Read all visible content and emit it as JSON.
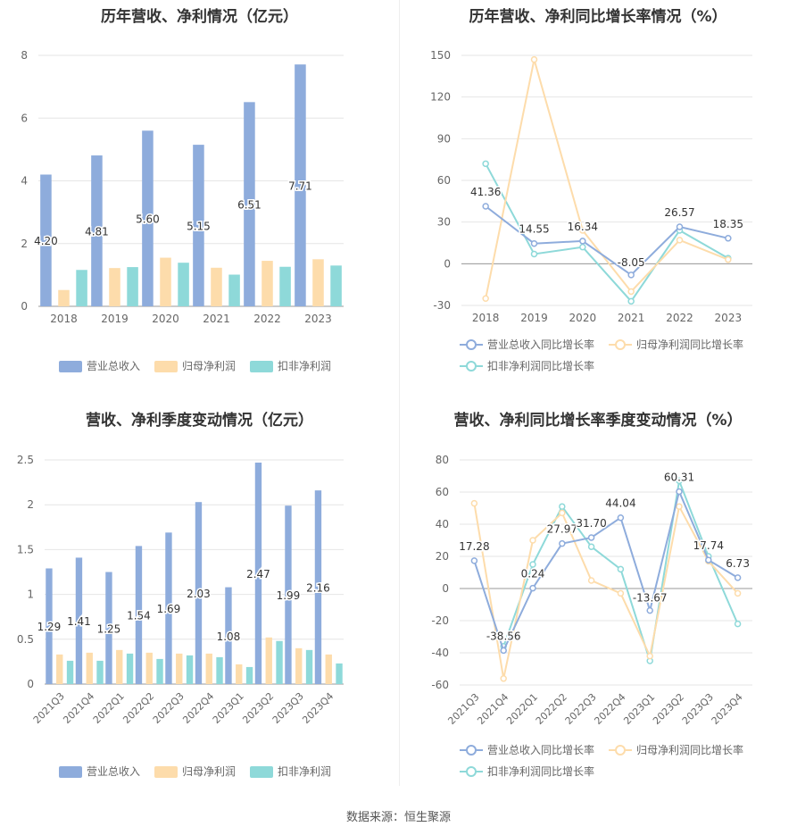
{
  "source": "数据来源：恒生聚源",
  "colors": {
    "revenue": "#8eacdc",
    "netprofit": "#fddcab",
    "deducted": "#8ed9d9",
    "grid": "#e6e6e6",
    "axis": "#999999",
    "text": "#666666"
  },
  "chart_data": [
    {
      "id": "annual-bar",
      "type": "bar",
      "title": "历年营收、净利情况（亿元）",
      "categories": [
        "2018",
        "2019",
        "2020",
        "2021",
        "2022",
        "2023"
      ],
      "ylim": [
        0,
        8
      ],
      "yticks": [
        0,
        2,
        4,
        6,
        8
      ],
      "series": [
        {
          "name": "营业总收入",
          "values": [
            4.2,
            4.81,
            5.6,
            5.15,
            6.51,
            7.71
          ],
          "labels": [
            "4.20",
            "4.81",
            "5.60",
            "5.15",
            "6.51",
            "7.71"
          ]
        },
        {
          "name": "归母净利润",
          "values": [
            0.52,
            1.22,
            1.55,
            1.23,
            1.45,
            1.5
          ]
        },
        {
          "name": "扣非净利润",
          "values": [
            1.16,
            1.25,
            1.39,
            1.01,
            1.26,
            1.3
          ]
        }
      ],
      "legend": "bottom"
    },
    {
      "id": "annual-line",
      "type": "line",
      "title": "历年营收、净利同比增长率情况（%）",
      "categories": [
        "2018",
        "2019",
        "2020",
        "2021",
        "2022",
        "2023"
      ],
      "ylim": [
        -30,
        150
      ],
      "yticks": [
        -30,
        0,
        30,
        60,
        90,
        120,
        150
      ],
      "series": [
        {
          "name": "营业总收入同比增长率",
          "values": [
            41.36,
            14.55,
            16.34,
            -8.05,
            26.57,
            18.35
          ],
          "labels": [
            "41.36",
            "14.55",
            "16.34",
            "-8.05",
            "26.57",
            "18.35"
          ]
        },
        {
          "name": "归母净利润同比增长率",
          "values": [
            -25,
            147,
            24,
            -20,
            17,
            3
          ]
        },
        {
          "name": "扣非净利润同比增长率",
          "values": [
            72,
            7,
            12,
            -27,
            24,
            4
          ]
        }
      ],
      "legend": "bottom"
    },
    {
      "id": "quarter-bar",
      "type": "bar",
      "title": "营收、净利季度变动情况（亿元）",
      "categories": [
        "2021Q3",
        "2021Q4",
        "2022Q1",
        "2022Q2",
        "2022Q3",
        "2022Q4",
        "2023Q1",
        "2023Q2",
        "2023Q3",
        "2023Q4"
      ],
      "ylim": [
        0,
        2.5
      ],
      "yticks": [
        0,
        0.5,
        1,
        1.5,
        2,
        2.5
      ],
      "yticklabels": [
        "0",
        "0.5",
        "1",
        "1.5",
        "2",
        "2.5"
      ],
      "series": [
        {
          "name": "营业总收入",
          "values": [
            1.29,
            1.41,
            1.25,
            1.54,
            1.69,
            2.03,
            1.08,
            2.47,
            1.99,
            2.16
          ],
          "labels": [
            "1.29",
            "1.41",
            "1.25",
            "1.54",
            "1.69",
            "2.03",
            "1.08",
            "2.47",
            "1.99",
            "2.16"
          ]
        },
        {
          "name": "归母净利润",
          "values": [
            0.33,
            0.35,
            0.38,
            0.35,
            0.34,
            0.34,
            0.22,
            0.52,
            0.4,
            0.33
          ]
        },
        {
          "name": "扣非净利润",
          "values": [
            0.26,
            0.26,
            0.34,
            0.28,
            0.32,
            0.3,
            0.19,
            0.48,
            0.38,
            0.23
          ]
        }
      ],
      "legend": "bottom"
    },
    {
      "id": "quarter-line",
      "type": "line",
      "title": "营收、净利同比增长率季度变动情况（%）",
      "categories": [
        "2021Q3",
        "2021Q4",
        "2022Q1",
        "2022Q2",
        "2022Q3",
        "2022Q4",
        "2023Q1",
        "2023Q2",
        "2023Q3",
        "2023Q4"
      ],
      "ylim": [
        -60,
        80
      ],
      "yticks": [
        -60,
        -40,
        -20,
        0,
        20,
        40,
        60,
        80
      ],
      "series": [
        {
          "name": "营业总收入同比增长率",
          "values": [
            17.28,
            -38.56,
            0.24,
            27.97,
            31.7,
            44.04,
            -13.67,
            60.31,
            17.74,
            6.73
          ],
          "labels": [
            "17.28",
            "-38.56",
            "0.24",
            "27.97",
            "31.70",
            "44.04",
            "-13.67",
            "60.31",
            "17.74",
            "6.73"
          ]
        },
        {
          "name": "归母净利润同比增长率",
          "values": [
            53,
            -56,
            30,
            47,
            5,
            -3,
            -42,
            51,
            17,
            -3
          ]
        },
        {
          "name": "扣非净利润同比增长率",
          "values": [
            null,
            -36,
            15,
            51,
            26,
            12,
            -45,
            67,
            20,
            -22
          ]
        }
      ],
      "legend": "bottom"
    }
  ]
}
